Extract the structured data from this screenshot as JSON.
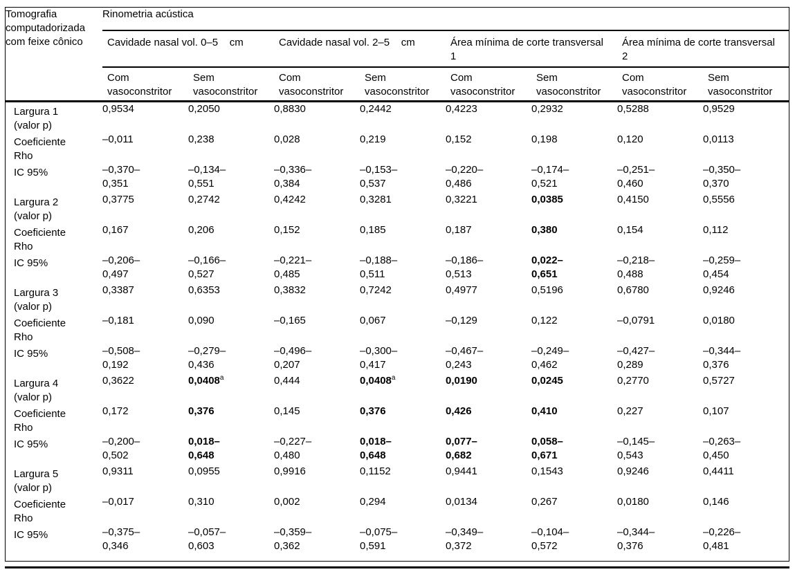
{
  "table": {
    "corner_header": "Tomografia\ncomputadorizada\ncom feixe cônico",
    "span_header": "Rinometria acústica",
    "group_headers": [
      "Cavidade nasal vol. 0–5    cm",
      "Cavidade nasal vol. 2–5    cm",
      "Área mínima de corte transversal 1",
      "Área mínima de corte transversal 2"
    ],
    "col_headers": [
      "Com vasoconstritor",
      "Sem vasoconstritor",
      "Com vasoconstritor",
      "Sem vasoconstritor",
      "Com vasoconstritor",
      "Sem vasoconstritor",
      "Com vasoconstritor",
      "Sem vasoconstritor"
    ],
    "rows": [
      {
        "label": "Largura 1\n(valor p)",
        "cells": [
          "0,9534",
          "0,2050",
          "0,8830",
          "0,2442",
          "0,4223",
          "0,2932",
          "0,5288",
          "0,9529"
        ],
        "bold": [],
        "sup": {}
      },
      {
        "label": "Coeficiente\nRho",
        "cells": [
          "–0,011",
          "0,238",
          "0,028",
          "0,219",
          "0,152",
          "0,198",
          "0,120",
          "0,0113"
        ],
        "bold": [],
        "sup": {}
      },
      {
        "label": "IC 95%",
        "cells": [
          "–0,370–\n0,351",
          "–0,134–\n0,551",
          "–0,336–\n0,384",
          "–0,153–\n0,537",
          "–0,220–\n0,486",
          "–0,174–\n0,521",
          "–0,251–\n0,460",
          "–0,350–\n0,370"
        ],
        "bold": [],
        "sup": {}
      },
      {
        "label": "Largura 2\n(valor p)",
        "cells": [
          "0,3775",
          "0,2742",
          "0,4242",
          "0,3281",
          "0,3221",
          "0,0385",
          "0,4150",
          "0,5556"
        ],
        "bold": [
          5
        ],
        "sup": {}
      },
      {
        "label": "Coeficiente\nRho",
        "cells": [
          "0,167",
          "0,206",
          "0,152",
          "0,185",
          "0,187",
          "0,380",
          "0,154",
          "0,112"
        ],
        "bold": [
          5
        ],
        "sup": {}
      },
      {
        "label": "IC 95%",
        "cells": [
          "–0,206–\n0,497",
          "–0,166–\n0,527",
          "–0,221–\n0,485",
          "–0,188–\n0,511",
          "–0,186–\n0,513",
          "0,022–\n0,651",
          "–0,218–\n0,488",
          "–0,259–\n0,454"
        ],
        "bold": [
          5
        ],
        "sup": {}
      },
      {
        "label": "Largura 3\n(valor p)",
        "cells": [
          "0,3387",
          "0,6353",
          "0,3832",
          "0,7242",
          "0,4977",
          "0,5196",
          "0,6780",
          "0,9246"
        ],
        "bold": [],
        "sup": {}
      },
      {
        "label": "Coeficiente\nRho",
        "cells": [
          "–0,181",
          "0,090",
          "–0,165",
          "0,067",
          "–0,129",
          "0,122",
          "–0,0791",
          "0,0180"
        ],
        "bold": [],
        "sup": {}
      },
      {
        "label": "IC 95%",
        "cells": [
          "–0,508–\n0,192",
          "–0,279–\n0,436",
          "–0,496–\n0,207",
          "–0,300–\n0,417",
          "–0,467–\n0,243",
          "–0,249–\n0,462",
          "–0,427–\n0,289",
          "–0,344–\n0,376"
        ],
        "bold": [],
        "sup": {}
      },
      {
        "label": "Largura 4\n(valor p)",
        "cells": [
          "0,3622",
          "0,0408",
          "0,444",
          "0,0408",
          "0,0190",
          "0,0245",
          "0,2770",
          "0,5727"
        ],
        "bold": [
          1,
          3,
          4,
          5
        ],
        "sup": {
          "1": "a",
          "3": "a"
        }
      },
      {
        "label": "Coeficiente\nRho",
        "cells": [
          "0,172",
          "0,376",
          "0,145",
          "0,376",
          "0,426",
          "0,410",
          "0,227",
          "0,107"
        ],
        "bold": [
          1,
          3,
          4,
          5
        ],
        "sup": {}
      },
      {
        "label": "IC 95%",
        "cells": [
          "–0,200–\n0,502",
          "0,018–\n0,648",
          "–0,227–\n0,480",
          "0,018–\n0,648",
          "0,077–\n0,682",
          "0,058–\n0,671",
          "–0,145–\n0,543",
          "–0,263–\n0,450"
        ],
        "bold": [
          1,
          3,
          4,
          5
        ],
        "sup": {}
      },
      {
        "label": "Largura 5\n(valor p)",
        "cells": [
          "0,9311",
          "0,0955",
          "0,9916",
          "0,1152",
          "0,9441",
          "0,1543",
          "0,9246",
          "0,4411"
        ],
        "bold": [],
        "sup": {}
      },
      {
        "label": "Coeficiente\nRho",
        "cells": [
          "–0,017",
          "0,310",
          "0,002",
          "0,294",
          "0,0134",
          "0,267",
          "0,0180",
          "0,146"
        ],
        "bold": [],
        "sup": {}
      },
      {
        "label": "IC 95%",
        "cells": [
          "–0,375–\n0,346",
          "–0,057–\n0,603",
          "–0,359–\n0,362",
          "–0,075–\n0,591",
          "–0,349–\n0,372",
          "–0,104–\n0,572",
          "–0,344–\n0,376",
          "–0,226–\n0,481"
        ],
        "bold": [],
        "sup": {}
      }
    ]
  }
}
